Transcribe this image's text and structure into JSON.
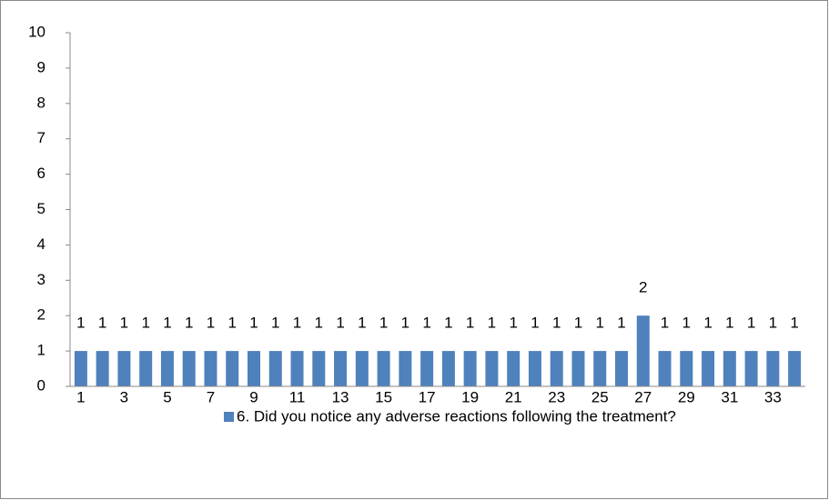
{
  "chart_data": {
    "type": "bar",
    "categories": [
      1,
      null,
      3,
      null,
      5,
      null,
      7,
      null,
      9,
      null,
      11,
      null,
      13,
      null,
      15,
      null,
      17,
      null,
      19,
      null,
      21,
      null,
      23,
      null,
      25,
      null,
      27,
      null,
      29,
      null,
      31,
      null,
      33,
      null
    ],
    "series": [
      {
        "name": "6. Did you notice any adverse reactions following the treatment?",
        "color": "#4f81bd",
        "values": [
          1,
          1,
          1,
          1,
          1,
          1,
          1,
          1,
          1,
          1,
          1,
          1,
          1,
          1,
          1,
          1,
          1,
          1,
          1,
          1,
          1,
          1,
          1,
          1,
          1,
          1,
          2,
          1,
          1,
          1,
          1,
          1,
          1,
          1
        ]
      }
    ],
    "ylim": [
      0,
      10
    ],
    "yticks": [
      0,
      1,
      2,
      3,
      4,
      5,
      6,
      7,
      8,
      9,
      10
    ],
    "grid": false,
    "legend": "bottom"
  }
}
